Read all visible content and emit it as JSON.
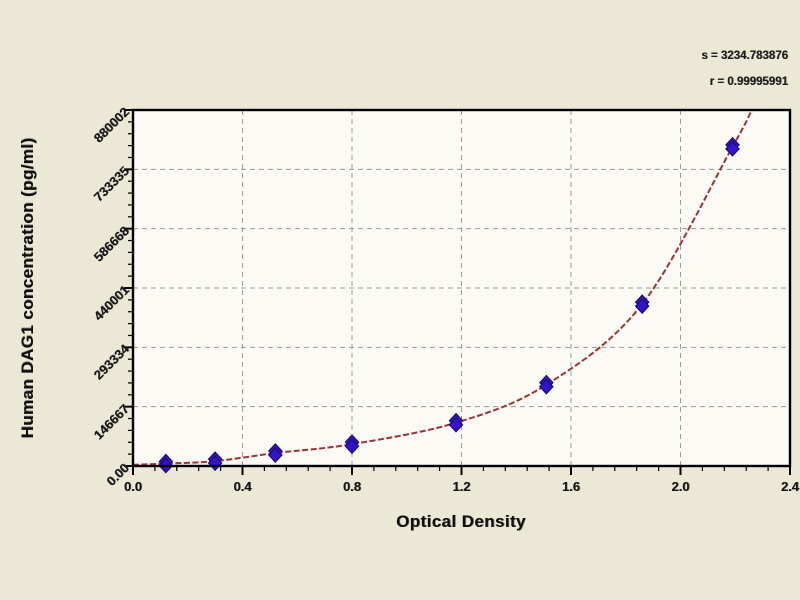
{
  "window": {
    "background": "#ece8d6"
  },
  "chart_data": {
    "type": "scatter",
    "title": "",
    "xlabel": "Optical Density",
    "ylabel": "Human DAG1 concentration (pg/ml)",
    "xlim": [
      0,
      2.4
    ],
    "ylim": [
      0,
      880002
    ],
    "x_tick_labels": [
      "0.0",
      "0.4",
      "0.8",
      "1.2",
      "1.6",
      "2.0",
      "2.4"
    ],
    "x_tick_values": [
      0,
      0.4,
      0.8,
      1.2,
      1.6,
      2.0,
      2.4
    ],
    "y_tick_labels": [
      "0.00",
      "146667",
      "293334",
      "440001",
      "586668",
      "733335",
      "880002"
    ],
    "y_tick_values": [
      0,
      146667,
      293334,
      440001,
      586668,
      733335,
      880002
    ],
    "minor_divisions": 5,
    "grid": {
      "style": "dashed",
      "at": "major-ticks",
      "color": "#9a9a9a"
    },
    "legend": "none",
    "series": [
      {
        "name": "standard-points",
        "type": "scatter",
        "marker": "diamond",
        "color": "#3413cc",
        "edge_color": "#1c0d73",
        "points": [
          [
            0.12,
            6000
          ],
          [
            0.3,
            12000
          ],
          [
            0.52,
            32000
          ],
          [
            0.8,
            54000
          ],
          [
            1.18,
            107000
          ],
          [
            1.51,
            201000
          ],
          [
            1.86,
            400000
          ],
          [
            2.19,
            789000
          ]
        ]
      },
      {
        "name": "fitted-curve",
        "type": "line",
        "color": "#9c3434",
        "points": [
          [
            0.0,
            3000
          ],
          [
            0.12,
            6000
          ],
          [
            0.3,
            12000
          ],
          [
            0.52,
            32000
          ],
          [
            0.8,
            54000
          ],
          [
            1.18,
            107000
          ],
          [
            1.51,
            201000
          ],
          [
            1.86,
            400000
          ],
          [
            2.19,
            789000
          ],
          [
            2.26,
            880002
          ]
        ]
      }
    ],
    "annotations": [
      {
        "text": "s = 3234.783876"
      },
      {
        "text": "r = 0.99995991"
      }
    ]
  },
  "colors": {
    "background": "#ece8d6",
    "plot_bg": "#fbfaf4",
    "border": "#000000",
    "curve": "#9c3434",
    "marker_fill": "#3413cc",
    "marker_edge": "#1c0d73",
    "grid": "#9a9a9a",
    "text": "#111111"
  }
}
